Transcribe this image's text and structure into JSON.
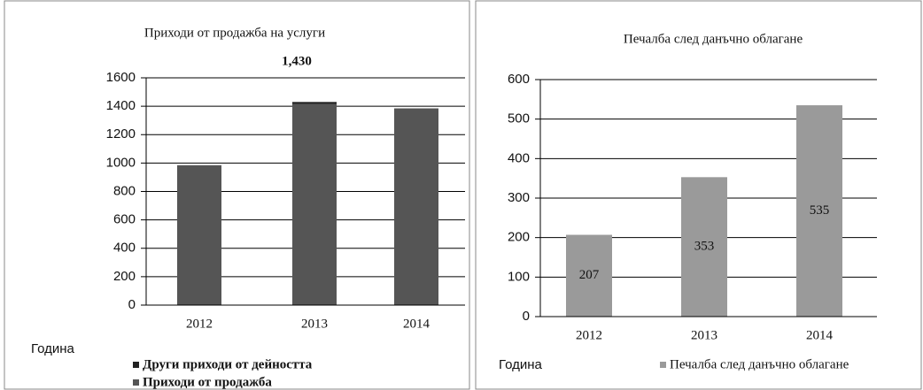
{
  "chart_data": [
    {
      "type": "bar",
      "stacked": true,
      "title": "Приходи от продажба на услуги",
      "annotations": [
        "1,430"
      ],
      "categories": [
        "2012",
        "2013",
        "2014"
      ],
      "series": [
        {
          "name": "Други приходи от дейността",
          "color": "#222222",
          "values": [
            null,
            14,
            null
          ]
        },
        {
          "name": "Приходи от продажба",
          "color": "#555555",
          "values": [
            985,
            1416,
            1385
          ]
        }
      ],
      "xlabel": "Година",
      "ylim": [
        0,
        1600
      ],
      "yticks": [
        0,
        200,
        400,
        600,
        800,
        1000,
        1200,
        1400,
        1600
      ],
      "grid": true
    },
    {
      "type": "bar",
      "title": "Печалба след данъчно облагане",
      "categories": [
        "2012",
        "2013",
        "2014"
      ],
      "series": [
        {
          "name": "Печалба след данъчно облагане",
          "color": "#9a9a9a",
          "values": [
            207,
            353,
            535
          ]
        }
      ],
      "xlabel": "Година",
      "ylim": [
        0,
        600
      ],
      "yticks": [
        0,
        100,
        200,
        300,
        400,
        500,
        600
      ],
      "grid": true
    }
  ]
}
